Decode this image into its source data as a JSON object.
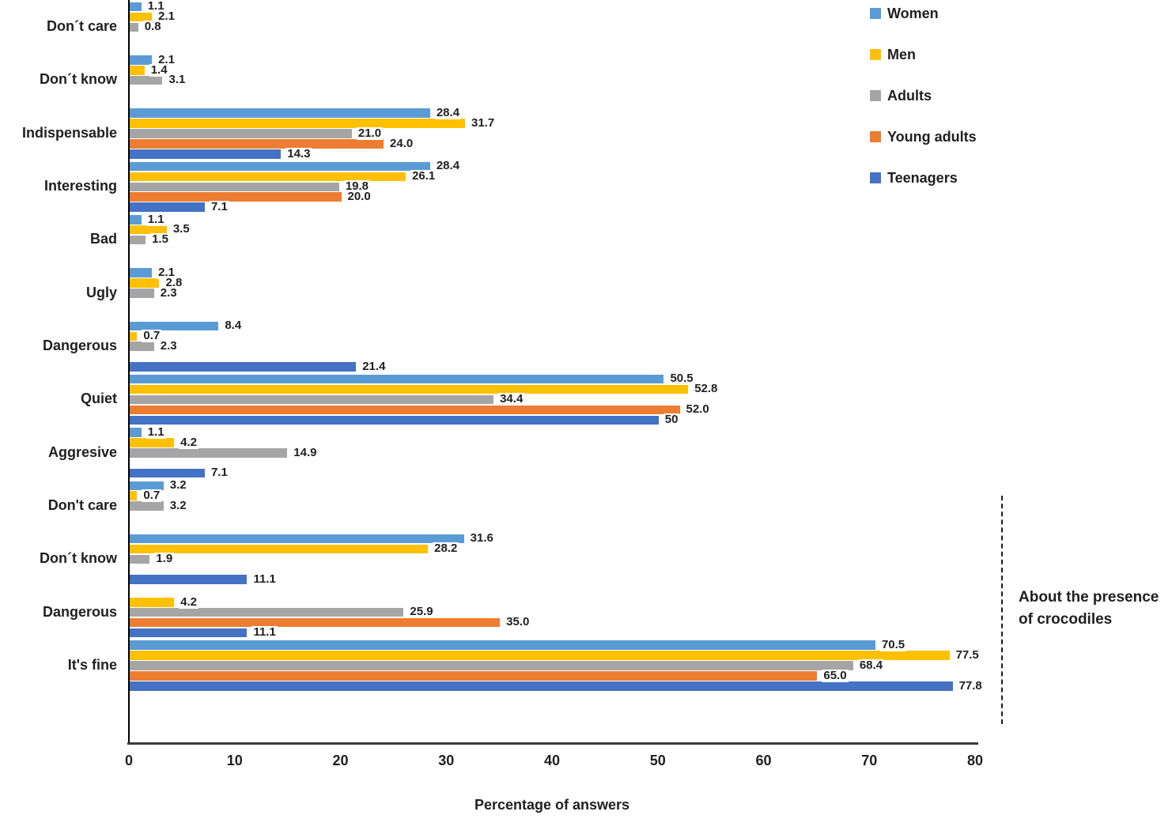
{
  "chart_data": {
    "type": "bar",
    "orientation": "horizontal-grouped",
    "title": "",
    "xlabel": "Percentage of answers",
    "xlim": [
      0,
      80
    ],
    "xticks": [
      0,
      10,
      20,
      30,
      40,
      50,
      60,
      70,
      80
    ],
    "grid": false,
    "legend_position": "top-right",
    "series": [
      {
        "name": "Women",
        "color": "#5B9BD5"
      },
      {
        "name": "Men",
        "color": "#FFC000"
      },
      {
        "name": "Adults",
        "color": "#A5A5A5"
      },
      {
        "name": "Young adults",
        "color": "#ED7D31"
      },
      {
        "name": "Teenagers",
        "color": "#4472C4"
      }
    ],
    "groups": [
      {
        "category": "Don´t care",
        "values": [
          1.1,
          2.1,
          0.8,
          null,
          null
        ],
        "labels": [
          "1.1",
          "2.1",
          "0.8",
          null,
          null
        ]
      },
      {
        "category": "Don´t know",
        "values": [
          2.1,
          1.4,
          3.1,
          null,
          null
        ],
        "labels": [
          "2.1",
          "1.4",
          "3.1",
          null,
          null
        ]
      },
      {
        "category": "Indispensable",
        "values": [
          28.4,
          31.7,
          21.0,
          24.0,
          14.3
        ],
        "labels": [
          "28.4",
          "31.7",
          "21.0",
          "24.0",
          "14.3"
        ]
      },
      {
        "category": "Interesting",
        "values": [
          28.4,
          26.1,
          19.8,
          20.0,
          7.1
        ],
        "labels": [
          "28.4",
          "26.1",
          "19.8",
          "20.0",
          "7.1"
        ]
      },
      {
        "category": "Bad",
        "values": [
          1.1,
          3.5,
          1.5,
          null,
          null
        ],
        "labels": [
          "1.1",
          "3.5",
          "1.5",
          null,
          null
        ]
      },
      {
        "category": "Ugly",
        "values": [
          2.1,
          2.8,
          2.3,
          null,
          null
        ],
        "labels": [
          "2.1",
          "2.8",
          "2.3",
          null,
          null
        ]
      },
      {
        "category": "Dangerous",
        "values": [
          8.4,
          0.7,
          2.3,
          null,
          21.4
        ],
        "labels": [
          "8.4",
          "0.7",
          "2.3",
          null,
          "21.4"
        ]
      },
      {
        "category": "Quiet",
        "values": [
          50.5,
          52.8,
          34.4,
          52.0,
          50
        ],
        "labels": [
          "50.5",
          "52.8",
          "34.4",
          "52.0",
          "50"
        ]
      },
      {
        "category": "Aggresive",
        "values": [
          1.1,
          4.2,
          14.9,
          null,
          7.1
        ],
        "labels": [
          "1.1",
          "4.2",
          "14.9",
          null,
          "7.1"
        ]
      },
      {
        "category": "Don't care",
        "values": [
          3.2,
          0.7,
          3.2,
          null,
          null
        ],
        "labels": [
          "3.2",
          "0.7",
          "3.2",
          null,
          null
        ]
      },
      {
        "category": "Don´t know",
        "values": [
          31.6,
          28.2,
          1.9,
          null,
          11.1
        ],
        "labels": [
          "31.6",
          "28.2",
          "1.9",
          null,
          "11.1"
        ]
      },
      {
        "category": "Dangerous",
        "values": [
          null,
          4.2,
          25.9,
          35.0,
          11.1
        ],
        "labels": [
          null,
          "4.2",
          "25.9",
          "35.0",
          "11.1"
        ]
      },
      {
        "category": "It's fine",
        "values": [
          70.5,
          77.5,
          68.4,
          65.0,
          77.8
        ],
        "labels": [
          "70.5",
          "77.5",
          "68.4",
          "65.0",
          "77.8"
        ]
      }
    ],
    "annotation": {
      "line1": "About the presence",
      "line2": "of crocodiles"
    }
  }
}
